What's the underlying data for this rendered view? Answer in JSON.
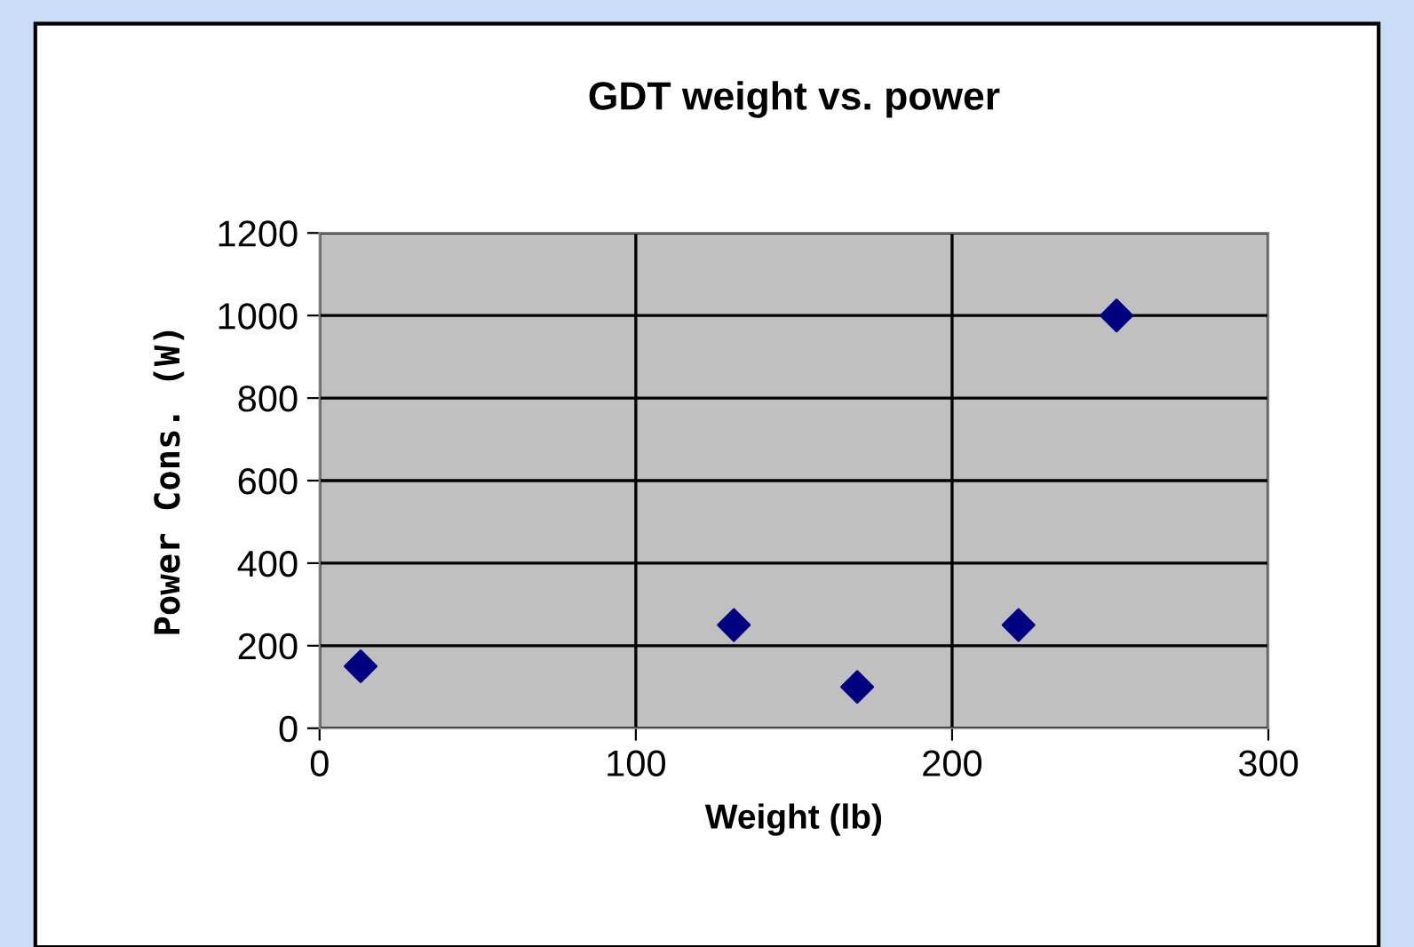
{
  "chart_data": {
    "type": "scatter",
    "title": "GDT weight vs. power",
    "xlabel": "Weight (lb)",
    "ylabel": "Power Cons. (W)",
    "x": [
      13,
      131,
      170,
      221,
      252
    ],
    "series": [
      {
        "color": "#000080",
        "values": [
          150,
          250,
          100,
          250,
          1000
        ]
      }
    ],
    "marker": "diamond",
    "xlim": [
      0,
      300
    ],
    "xticks": [
      0,
      100,
      200,
      300
    ],
    "ylim": [
      0,
      1200
    ],
    "yticks": [
      0,
      200,
      400,
      600,
      800,
      1000,
      1200
    ],
    "grid": true,
    "legend": false
  }
}
